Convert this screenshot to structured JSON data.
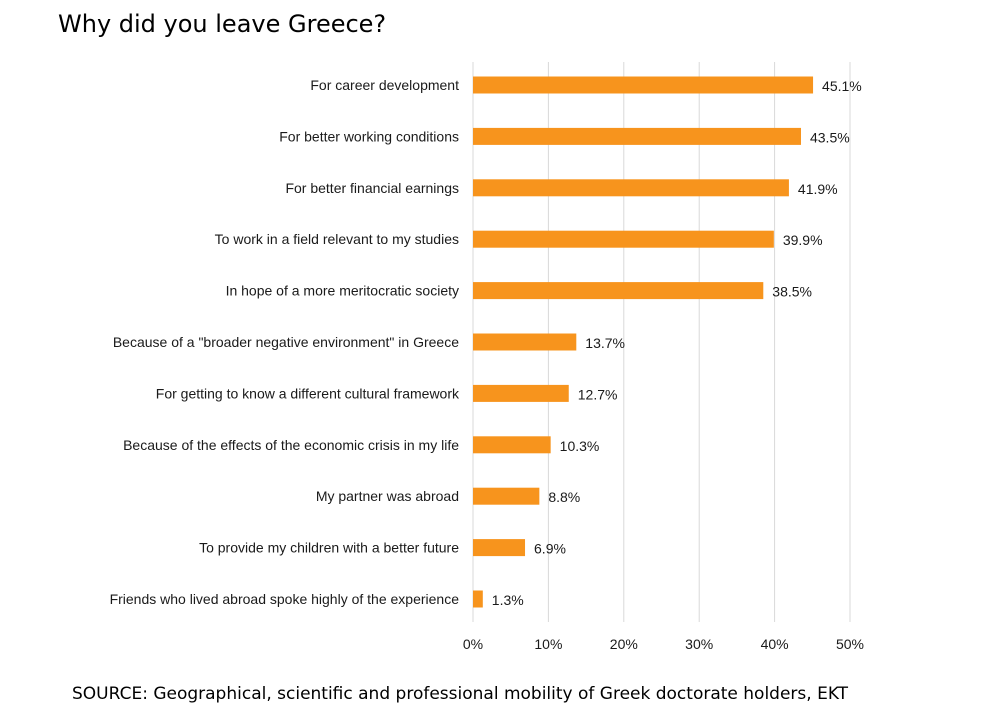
{
  "title": "Why did you leave Greece?",
  "source": "SOURCE: Geographical, scientific and professional mobility of Greek doctorate holders, EKT",
  "colors": {
    "bar": "#F7941D",
    "grid": "#d9d9d9"
  },
  "chart_data": {
    "type": "bar",
    "orientation": "horizontal",
    "categories": [
      "For career development",
      "For better working conditions",
      "For better financial earnings",
      "To work in a field relevant to my studies",
      "In hope of a more meritocratic society",
      "Because of a \"broader negative environment\" in Greece",
      "For getting to know a different cultural framework",
      "Because of the effects of the economic crisis in my life",
      "My partner was abroad",
      "To provide my children with a better future",
      "Friends who lived abroad spoke highly of the experience"
    ],
    "values": [
      45.1,
      43.5,
      41.9,
      39.9,
      38.5,
      13.7,
      12.7,
      10.3,
      8.8,
      6.9,
      1.3
    ],
    "value_labels": [
      "45.1%",
      "43.5%",
      "41.9%",
      "39.9%",
      "38.5%",
      "13.7%",
      "12.7%",
      "10.3%",
      "8.8%",
      "6.9%",
      "1.3%"
    ],
    "xticks": [
      0,
      10,
      20,
      30,
      40,
      50
    ],
    "xtick_labels": [
      "0%",
      "10%",
      "20%",
      "30%",
      "40%",
      "50%"
    ],
    "xlim": [
      0,
      50
    ],
    "grid": true
  }
}
